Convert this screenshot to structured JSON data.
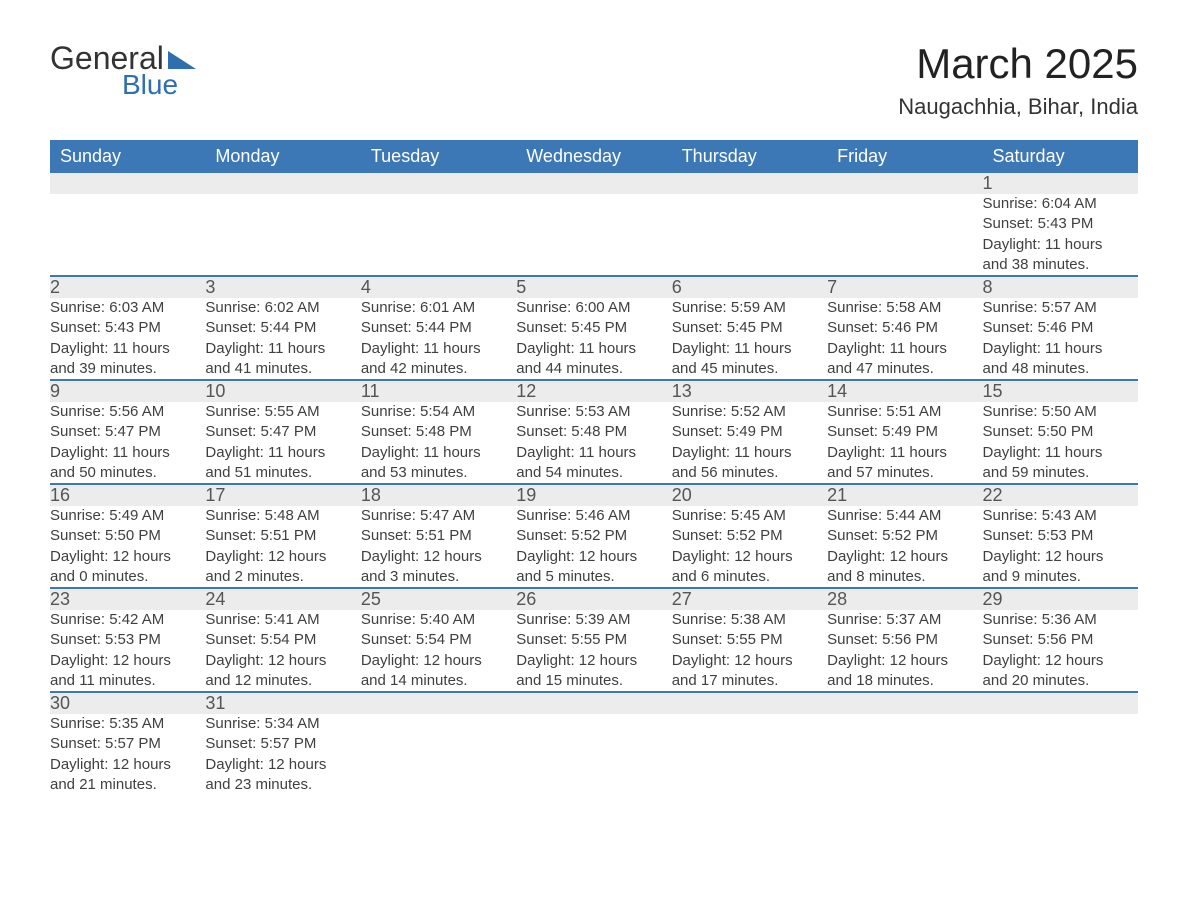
{
  "logo": {
    "text_general": "General",
    "text_blue": "Blue"
  },
  "title": "March 2025",
  "location": "Naugachhia, Bihar, India",
  "colors": {
    "header_bg": "#3b78b5",
    "header_text": "#ffffff",
    "daynum_bg": "#ececec",
    "row_border": "#3b78b5",
    "body_text": "#404040",
    "logo_blue": "#2f6fb0"
  },
  "typography": {
    "title_fontsize": 42,
    "location_fontsize": 22,
    "header_fontsize": 18,
    "daynum_fontsize": 18,
    "data_fontsize": 15
  },
  "weekdays": [
    "Sunday",
    "Monday",
    "Tuesday",
    "Wednesday",
    "Thursday",
    "Friday",
    "Saturday"
  ],
  "labels": {
    "sunrise": "Sunrise: ",
    "sunset": "Sunset: ",
    "daylight": "Daylight: "
  },
  "weeks": [
    [
      null,
      null,
      null,
      null,
      null,
      null,
      {
        "n": "1",
        "sr": "6:04 AM",
        "ss": "5:43 PM",
        "dl": "11 hours and 38 minutes."
      }
    ],
    [
      {
        "n": "2",
        "sr": "6:03 AM",
        "ss": "5:43 PM",
        "dl": "11 hours and 39 minutes."
      },
      {
        "n": "3",
        "sr": "6:02 AM",
        "ss": "5:44 PM",
        "dl": "11 hours and 41 minutes."
      },
      {
        "n": "4",
        "sr": "6:01 AM",
        "ss": "5:44 PM",
        "dl": "11 hours and 42 minutes."
      },
      {
        "n": "5",
        "sr": "6:00 AM",
        "ss": "5:45 PM",
        "dl": "11 hours and 44 minutes."
      },
      {
        "n": "6",
        "sr": "5:59 AM",
        "ss": "5:45 PM",
        "dl": "11 hours and 45 minutes."
      },
      {
        "n": "7",
        "sr": "5:58 AM",
        "ss": "5:46 PM",
        "dl": "11 hours and 47 minutes."
      },
      {
        "n": "8",
        "sr": "5:57 AM",
        "ss": "5:46 PM",
        "dl": "11 hours and 48 minutes."
      }
    ],
    [
      {
        "n": "9",
        "sr": "5:56 AM",
        "ss": "5:47 PM",
        "dl": "11 hours and 50 minutes."
      },
      {
        "n": "10",
        "sr": "5:55 AM",
        "ss": "5:47 PM",
        "dl": "11 hours and 51 minutes."
      },
      {
        "n": "11",
        "sr": "5:54 AM",
        "ss": "5:48 PM",
        "dl": "11 hours and 53 minutes."
      },
      {
        "n": "12",
        "sr": "5:53 AM",
        "ss": "5:48 PM",
        "dl": "11 hours and 54 minutes."
      },
      {
        "n": "13",
        "sr": "5:52 AM",
        "ss": "5:49 PM",
        "dl": "11 hours and 56 minutes."
      },
      {
        "n": "14",
        "sr": "5:51 AM",
        "ss": "5:49 PM",
        "dl": "11 hours and 57 minutes."
      },
      {
        "n": "15",
        "sr": "5:50 AM",
        "ss": "5:50 PM",
        "dl": "11 hours and 59 minutes."
      }
    ],
    [
      {
        "n": "16",
        "sr": "5:49 AM",
        "ss": "5:50 PM",
        "dl": "12 hours and 0 minutes."
      },
      {
        "n": "17",
        "sr": "5:48 AM",
        "ss": "5:51 PM",
        "dl": "12 hours and 2 minutes."
      },
      {
        "n": "18",
        "sr": "5:47 AM",
        "ss": "5:51 PM",
        "dl": "12 hours and 3 minutes."
      },
      {
        "n": "19",
        "sr": "5:46 AM",
        "ss": "5:52 PM",
        "dl": "12 hours and 5 minutes."
      },
      {
        "n": "20",
        "sr": "5:45 AM",
        "ss": "5:52 PM",
        "dl": "12 hours and 6 minutes."
      },
      {
        "n": "21",
        "sr": "5:44 AM",
        "ss": "5:52 PM",
        "dl": "12 hours and 8 minutes."
      },
      {
        "n": "22",
        "sr": "5:43 AM",
        "ss": "5:53 PM",
        "dl": "12 hours and 9 minutes."
      }
    ],
    [
      {
        "n": "23",
        "sr": "5:42 AM",
        "ss": "5:53 PM",
        "dl": "12 hours and 11 minutes."
      },
      {
        "n": "24",
        "sr": "5:41 AM",
        "ss": "5:54 PM",
        "dl": "12 hours and 12 minutes."
      },
      {
        "n": "25",
        "sr": "5:40 AM",
        "ss": "5:54 PM",
        "dl": "12 hours and 14 minutes."
      },
      {
        "n": "26",
        "sr": "5:39 AM",
        "ss": "5:55 PM",
        "dl": "12 hours and 15 minutes."
      },
      {
        "n": "27",
        "sr": "5:38 AM",
        "ss": "5:55 PM",
        "dl": "12 hours and 17 minutes."
      },
      {
        "n": "28",
        "sr": "5:37 AM",
        "ss": "5:56 PM",
        "dl": "12 hours and 18 minutes."
      },
      {
        "n": "29",
        "sr": "5:36 AM",
        "ss": "5:56 PM",
        "dl": "12 hours and 20 minutes."
      }
    ],
    [
      {
        "n": "30",
        "sr": "5:35 AM",
        "ss": "5:57 PM",
        "dl": "12 hours and 21 minutes."
      },
      {
        "n": "31",
        "sr": "5:34 AM",
        "ss": "5:57 PM",
        "dl": "12 hours and 23 minutes."
      },
      null,
      null,
      null,
      null,
      null
    ]
  ]
}
